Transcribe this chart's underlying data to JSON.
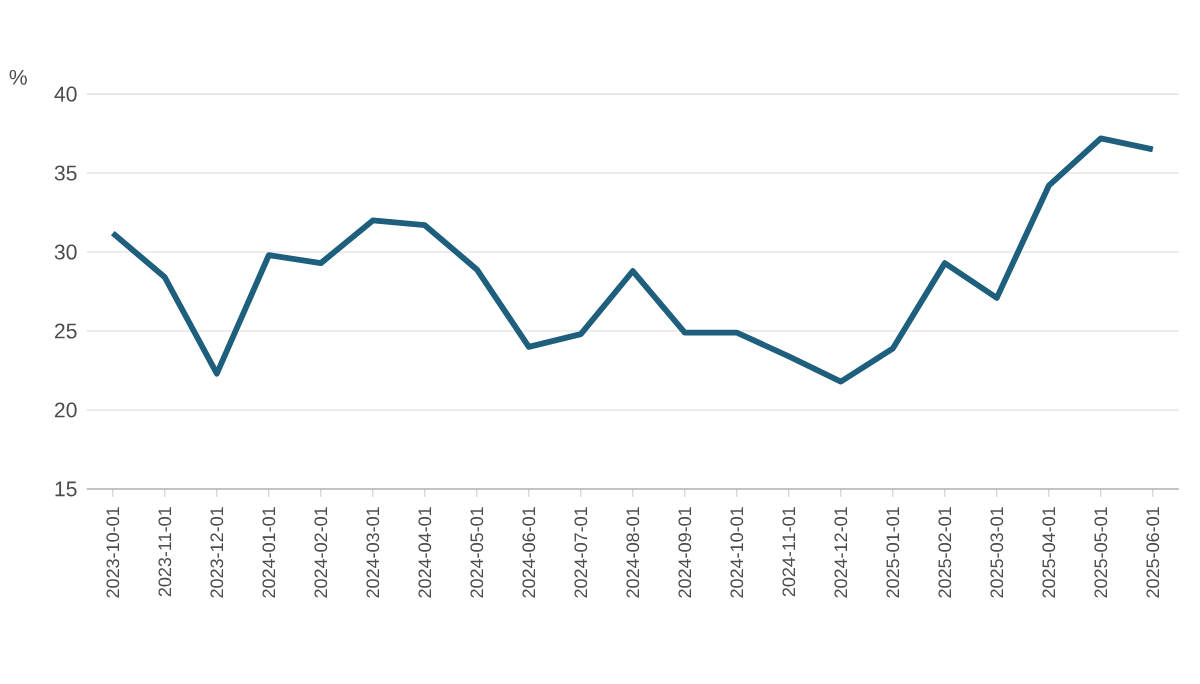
{
  "chart_data": {
    "type": "line",
    "ylabel": "%",
    "categories": [
      "2023-10-01",
      "2023-11-01",
      "2023-12-01",
      "2024-01-01",
      "2024-02-01",
      "2024-03-01",
      "2024-04-01",
      "2024-05-01",
      "2024-06-01",
      "2024-07-01",
      "2024-08-01",
      "2024-09-01",
      "2024-10-01",
      "2024-11-01",
      "2024-12-01",
      "2025-01-01",
      "2025-02-01",
      "2025-03-01",
      "2025-04-01",
      "2025-05-01",
      "2025-06-01"
    ],
    "series": [
      {
        "color": "#1d5f7d",
        "values": [
          31.2,
          28.4,
          22.3,
          29.8,
          29.3,
          32.0,
          31.7,
          28.9,
          24.0,
          24.8,
          28.8,
          24.9,
          24.9,
          23.4,
          21.8,
          23.9,
          29.3,
          27.1,
          34.2,
          37.2,
          36.5
        ]
      }
    ],
    "ylim": [
      15,
      40
    ],
    "yticks": [
      15,
      20,
      25,
      30,
      35,
      40
    ],
    "grid": "y",
    "marker": "none",
    "line_style": "solid"
  }
}
